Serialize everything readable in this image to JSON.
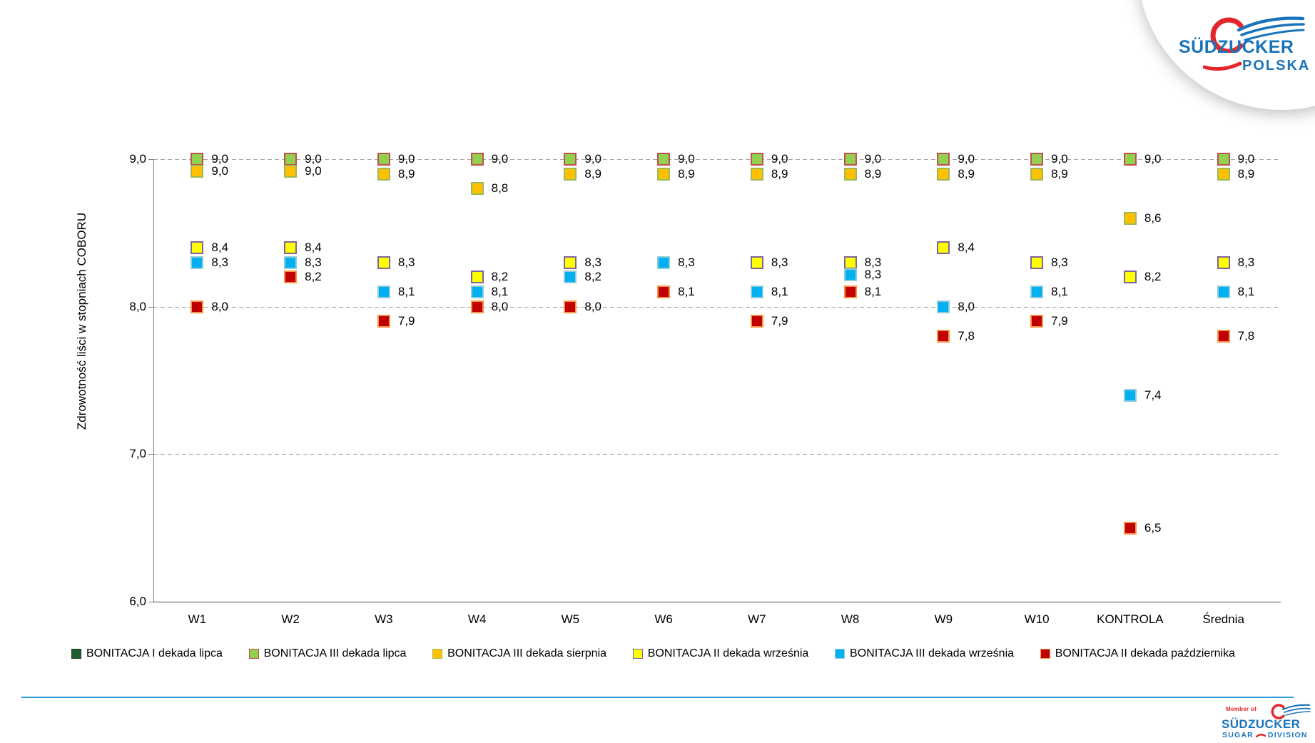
{
  "header_logo": {
    "brand": "SÜDZUCKER",
    "region": "POLSKA"
  },
  "footer_logo": {
    "member_of": "Member of",
    "brand": "SÜDZUCKER",
    "division_left": "SUGAR",
    "division_right": "DIVISION"
  },
  "colors": {
    "grid": "#a6a6a6",
    "axis": "#7f7f7f",
    "x_axis": "#4d4d4d",
    "brand_blue": "#1a74ba",
    "brand_red": "#e3262b",
    "footer_line_blue": "#2e9bd6"
  },
  "chart_data": {
    "type": "scatter",
    "title": "",
    "xlabel": "",
    "ylabel": "Zdrowotność liści w stopniach COBORU",
    "ylim": [
      6.0,
      9.0
    ],
    "yticks": [
      {
        "v": 9.0,
        "label": "9,0"
      },
      {
        "v": 8.0,
        "label": "8,0"
      },
      {
        "v": 7.0,
        "label": "7,0"
      },
      {
        "v": 6.0,
        "label": "6,0"
      }
    ],
    "grid": "horizontal-dashed",
    "legend_position": "bottom",
    "decimal_separator": ",",
    "marker": "square",
    "data_labels": "right-of-marker, one decimal, comma separator",
    "categories": [
      "W1",
      "W2",
      "W3",
      "W4",
      "W5",
      "W6",
      "W7",
      "W8",
      "W9",
      "W10",
      "KONTROLA",
      "Średnia"
    ],
    "series": [
      {
        "name": "BONITACJA I dekada lipca",
        "fill": "#215c31",
        "border": "#16401f",
        "visible_in_plot": false,
        "values": [
          null,
          null,
          null,
          null,
          null,
          null,
          null,
          null,
          null,
          null,
          null,
          null
        ]
      },
      {
        "name": "BONITACJA III dekada lipca",
        "fill": "#92d050",
        "border": "#c0504d",
        "values": [
          9.0,
          9.0,
          9.0,
          9.0,
          9.0,
          9.0,
          9.0,
          9.0,
          9.0,
          9.0,
          9.0,
          9.0
        ]
      },
      {
        "name": "BONITACJA III dekada sierpnia",
        "fill": "#ffc000",
        "border": "#9bbb59",
        "values": [
          9.0,
          9.0,
          8.9,
          8.8,
          8.9,
          8.9,
          8.9,
          8.9,
          8.9,
          8.9,
          8.6,
          8.9
        ]
      },
      {
        "name": "BONITACJA II dekada września",
        "fill": "#ffff00",
        "border": "#8064a2",
        "values": [
          8.4,
          8.4,
          8.3,
          8.2,
          8.3,
          null,
          8.3,
          8.3,
          8.4,
          8.3,
          8.2,
          8.3
        ]
      },
      {
        "name": "BONITACJA III dekada września",
        "fill": "#00b0f0",
        "border": "#92cddc",
        "values": [
          8.3,
          8.3,
          8.1,
          8.1,
          8.2,
          8.3,
          8.1,
          8.3,
          8.0,
          8.1,
          7.4,
          8.1
        ]
      },
      {
        "name": "BONITACJA II dekada października",
        "fill": "#c00000",
        "border": "#f79646",
        "values": [
          8.0,
          8.2,
          7.9,
          8.0,
          8.0,
          8.1,
          7.9,
          8.1,
          7.8,
          7.9,
          6.5,
          7.8
        ]
      }
    ]
  }
}
